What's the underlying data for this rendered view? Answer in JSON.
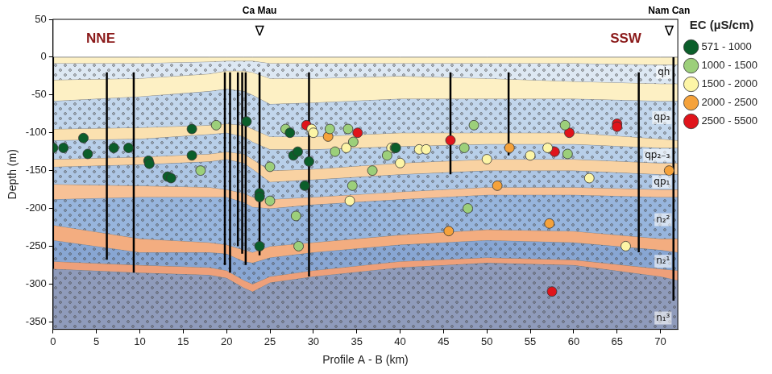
{
  "chart_data": {
    "type": "scatter",
    "xlabel": "Profile A - B (km)",
    "ylabel": "Depth (m)",
    "xlim": [
      0,
      72
    ],
    "xticks": [
      0,
      5,
      10,
      15,
      20,
      25,
      30,
      35,
      40,
      45,
      50,
      55,
      60,
      65,
      70
    ],
    "ylim": [
      -360,
      50
    ],
    "yticks": [
      -350,
      -300,
      -250,
      -200,
      -150,
      -100,
      -50,
      0,
      50
    ],
    "grid": false,
    "legend": "right",
    "legend_title": "EC (µS/cm)",
    "series": [
      {
        "name": "571 - 1000",
        "color": "#0b5e2a",
        "x": [
          0,
          1.2,
          3.5,
          4,
          7,
          8.7,
          11,
          11.1,
          13.2,
          13.6,
          16,
          16,
          22.3,
          23.8,
          23.8,
          23.8,
          27.3,
          27.7,
          28.2,
          29,
          29.5,
          39.5
        ],
        "y": [
          -120,
          -120,
          -107,
          -128,
          -120,
          -120,
          -137,
          -141,
          -158,
          -160,
          -95,
          -130,
          -85,
          -180,
          -185,
          -250,
          -100,
          -130,
          -125,
          -170,
          -138,
          -120
        ]
      },
      {
        "name": "1000 - 1500",
        "color": "#9ccf7a",
        "x": [
          17,
          18.8,
          25,
          25,
          26.8,
          28,
          28.3,
          31.9,
          32.5,
          34,
          34.6,
          34.5,
          36.8,
          38.5,
          39.4,
          47.4,
          47.8,
          48.5,
          59,
          59.3
        ],
        "y": [
          -150,
          -90,
          -145,
          -190,
          -95,
          -210,
          -250,
          -95,
          -125,
          -95,
          -112,
          -170,
          -150,
          -130,
          -120,
          -120,
          -200,
          -90,
          -90,
          -128
        ]
      },
      {
        "name": "1500 - 2000",
        "color": "#fdf5a6",
        "x": [
          29.8,
          30,
          33.8,
          34.2,
          39,
          40,
          42.2,
          43,
          50,
          55,
          57,
          61.8,
          66
        ],
        "y": [
          -95,
          -100,
          -120,
          -190,
          -120,
          -140,
          -122,
          -122,
          -135,
          -130,
          -120,
          -160,
          -250
        ]
      },
      {
        "name": "2000 - 2500",
        "color": "#f5a23b",
        "x": [
          31.7,
          45.6,
          51.2,
          52.6,
          57.2,
          71
        ],
        "y": [
          -105,
          -230,
          -170,
          -120,
          -220,
          -150
        ]
      },
      {
        "name": "2500 - 5500",
        "color": "#e0141b",
        "x": [
          29.2,
          35.1,
          45.8,
          57.8,
          59.5,
          65,
          65,
          57.5
        ],
        "y": [
          -90,
          -100,
          -110,
          -125,
          -100,
          -88,
          -92,
          -310
        ]
      }
    ],
    "strata": {
      "x": [
        0,
        10,
        18,
        20,
        22,
        23,
        25,
        30,
        40,
        50,
        60,
        70,
        72
      ],
      "boundaries": [
        [
          0,
          0,
          0,
          0,
          0,
          0,
          0,
          0,
          0,
          0,
          0,
          0,
          0
        ],
        [
          -8,
          -8,
          -6,
          -5,
          -5,
          -5,
          -8,
          -8,
          -8,
          -8,
          -8,
          -10,
          -10
        ],
        [
          -30,
          -28,
          -22,
          -18,
          -18,
          -20,
          -28,
          -28,
          -25,
          -28,
          -32,
          -35,
          -35
        ],
        [
          -58,
          -52,
          -45,
          -42,
          -45,
          -50,
          -62,
          -60,
          -55,
          -55,
          -55,
          -58,
          -58
        ],
        [
          -95,
          -93,
          -90,
          -88,
          -90,
          -95,
          -105,
          -105,
          -100,
          -100,
          -100,
          -108,
          -110
        ],
        [
          -110,
          -108,
          -102,
          -100,
          -105,
          -112,
          -122,
          -122,
          -118,
          -115,
          -115,
          -120,
          -120
        ],
        [
          -135,
          -132,
          -128,
          -125,
          -128,
          -135,
          -150,
          -148,
          -140,
          -135,
          -135,
          -140,
          -140
        ],
        [
          -145,
          -142,
          -138,
          -135,
          -140,
          -148,
          -165,
          -162,
          -155,
          -150,
          -150,
          -155,
          -155
        ],
        [
          -168,
          -170,
          -172,
          -175,
          -180,
          -185,
          -188,
          -185,
          -178,
          -172,
          -172,
          -175,
          -175
        ],
        [
          -188,
          -185,
          -185,
          -185,
          -192,
          -198,
          -200,
          -195,
          -188,
          -182,
          -182,
          -185,
          -185
        ],
        [
          -222,
          -240,
          -245,
          -248,
          -255,
          -258,
          -250,
          -245,
          -235,
          -228,
          -230,
          -240,
          -240
        ],
        [
          -242,
          -258,
          -258,
          -260,
          -270,
          -272,
          -265,
          -258,
          -248,
          -242,
          -245,
          -255,
          -258
        ],
        [
          -270,
          -275,
          -278,
          -282,
          -295,
          -300,
          -290,
          -282,
          -270,
          -265,
          -268,
          -280,
          -282
        ],
        [
          -280,
          -285,
          -288,
          -292,
          -305,
          -310,
          -298,
          -290,
          -278,
          -272,
          -275,
          -290,
          -295
        ]
      ],
      "layers": [
        {
          "color": "#fdf0c4"
        },
        {
          "color": "#dde8f3",
          "marker": "dots"
        },
        {
          "color": "#fdf0c4"
        },
        {
          "color": "#c2d6ec",
          "marker": "dots"
        },
        {
          "color": "#fbe1b0"
        },
        {
          "color": "#b8cfe9",
          "marker": "dots"
        },
        {
          "color": "#f9d2a2"
        },
        {
          "color": "#adc6e5",
          "marker": "dots"
        },
        {
          "color": "#f7c196"
        },
        {
          "color": "#97b5dd",
          "marker": "dots"
        },
        {
          "color": "#f3ad80"
        },
        {
          "color": "#88a6d3",
          "marker": "dots"
        },
        {
          "color": "#eea07a"
        },
        {
          "color": "#8f9bbb",
          "marker": "dots"
        }
      ]
    },
    "wells": {
      "color": "#000000",
      "x": [
        0,
        6.2,
        9.3,
        19.8,
        20.4,
        21.3,
        21.8,
        22.2,
        23.8,
        29.5,
        45.8,
        52.5,
        67.5,
        71.5
      ],
      "top": [
        0,
        -20,
        -20,
        -20,
        -20,
        -20,
        -20,
        -20,
        -20,
        -20,
        -20,
        -20,
        -20,
        0
      ],
      "bottom": [
        -280,
        -268,
        -285,
        -275,
        -285,
        -250,
        -260,
        -275,
        -262,
        -290,
        -155,
        -130,
        -258,
        -322
      ]
    },
    "layer_labels": [
      {
        "text": "qh",
        "x": 71.1,
        "y": -20
      },
      {
        "text": "qp₃",
        "x": 71.1,
        "y": -80
      },
      {
        "text": "qp₂₋₃",
        "x": 71.1,
        "y": -130
      },
      {
        "text": "qp₁",
        "x": 71.1,
        "y": -165
      },
      {
        "text": "n₂²",
        "x": 71.1,
        "y": -215
      },
      {
        "text": "n₂¹",
        "x": 71.1,
        "y": -270
      },
      {
        "text": "n₁³",
        "x": 71.1,
        "y": -345
      }
    ],
    "directions": [
      {
        "text": "NNE",
        "x": 5.5,
        "y": 24,
        "color": "#8b1a1a"
      },
      {
        "text": "SSW",
        "x": 66,
        "y": 24,
        "color": "#8b1a1a"
      }
    ],
    "places": [
      {
        "text": "Ca Mau",
        "symbol": "∇",
        "x": 23.8
      },
      {
        "text": "Nam Can",
        "symbol": "∇",
        "x": 71
      }
    ]
  }
}
